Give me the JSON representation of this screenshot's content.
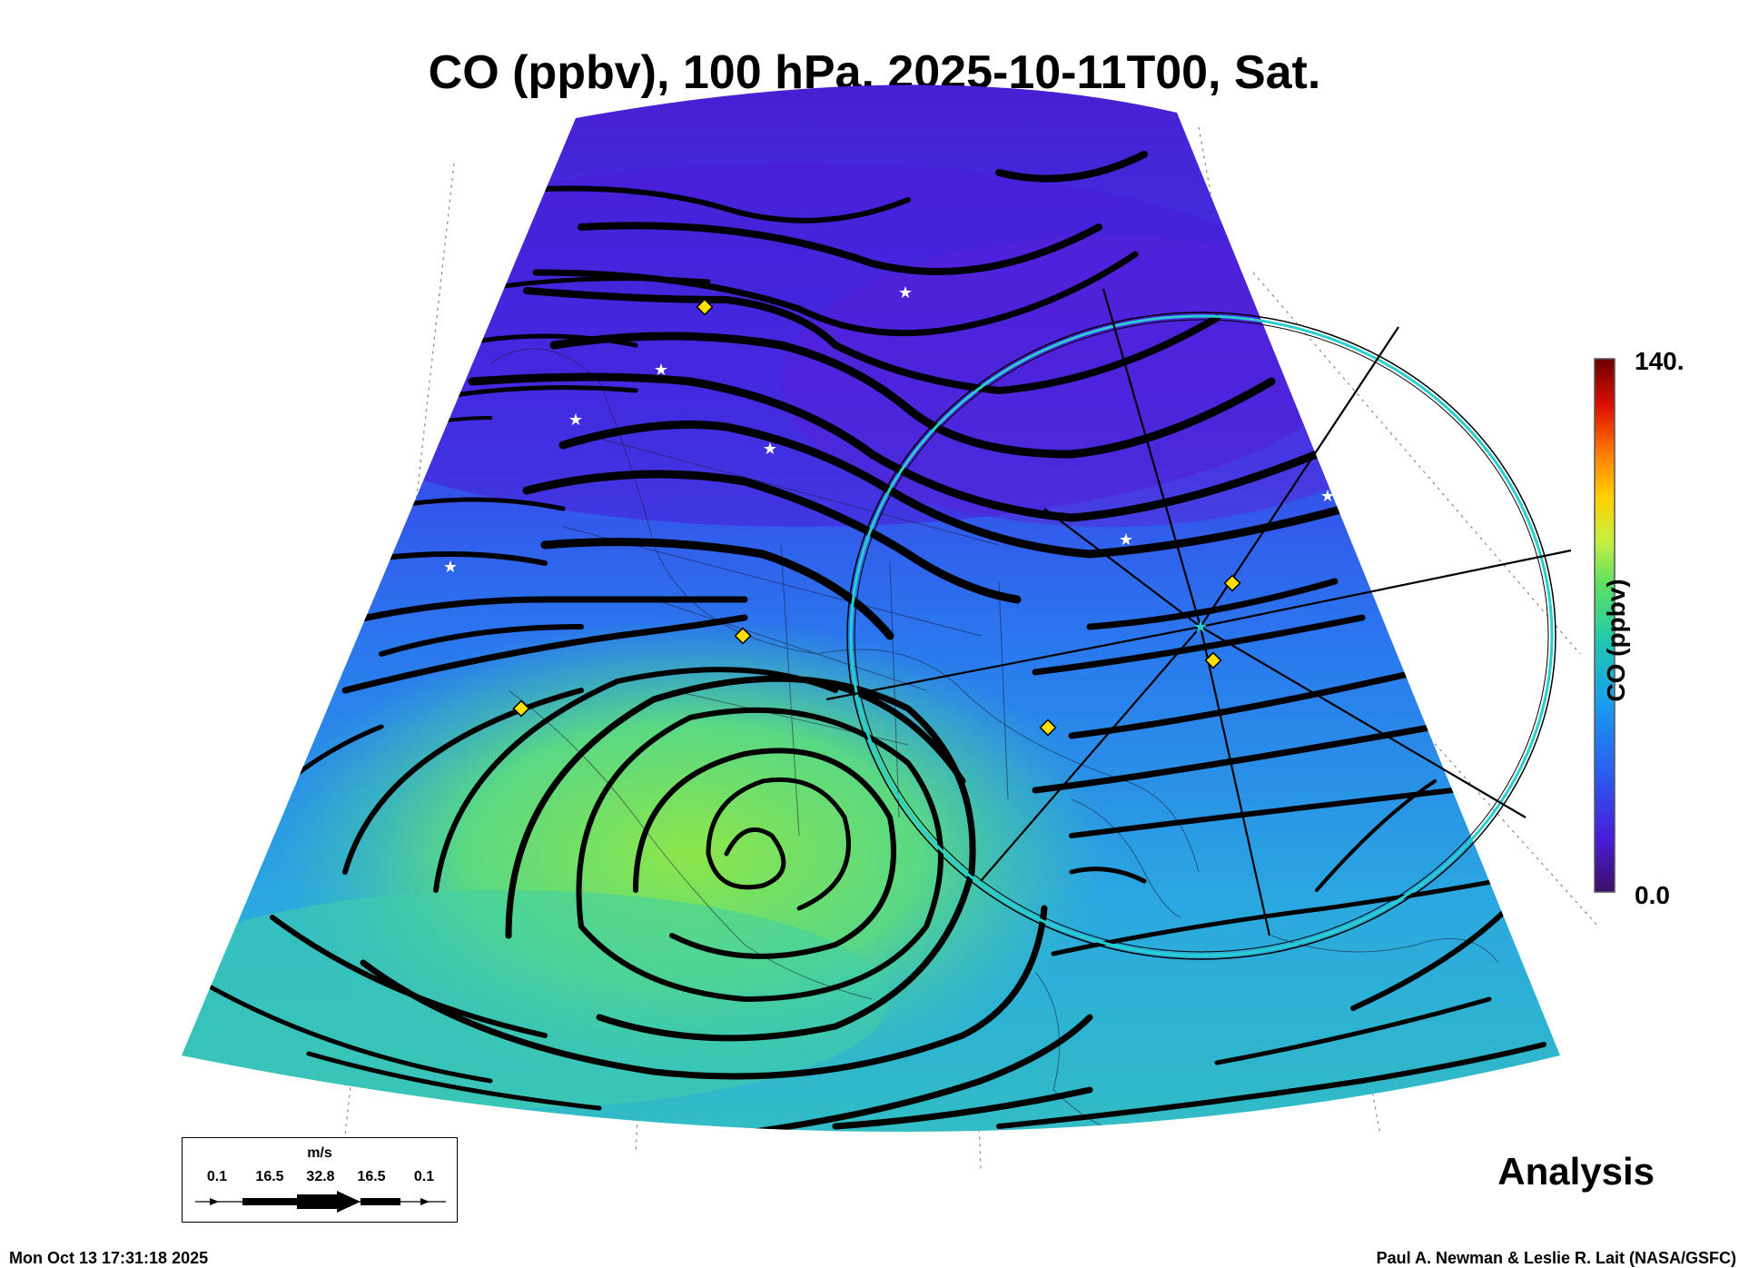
{
  "title": "CO (ppbv), 100 hPa, 2025-10-11T00, Sat.",
  "colorbar": {
    "label": "CO (ppbv)",
    "max_label": "140.",
    "min_label": "0.0",
    "range": [
      0.0,
      140.0
    ],
    "colors": [
      "#3a1066",
      "#4a1cd8",
      "#2a5cf0",
      "#1a9bf0",
      "#22c8b0",
      "#60e060",
      "#c8f040",
      "#ffd000",
      "#ff8000",
      "#e01000",
      "#6a0000"
    ]
  },
  "wind_legend": {
    "unit": "m/s",
    "ticks": [
      "0.1",
      "16.5",
      "32.8",
      "16.5",
      "0.1"
    ]
  },
  "panel_label": "Analysis",
  "timestamp": "Mon Oct 13 17:31:18 2025",
  "credit": "Paul A. Newman & Leslie R. Lait (NASA/GSFC)",
  "map": {
    "projection": "polar conic, North America",
    "field_colors": {
      "north": "#5a1fd8",
      "mid": "#2b72ee",
      "south": "#45d6a8",
      "anticyclone_core": "#8ce64a"
    },
    "streamline_color": "#000000",
    "range_ring_color": "#26d0d0",
    "marker_colors": {
      "diamond": "#ffe000",
      "star": "#ffffff"
    }
  }
}
